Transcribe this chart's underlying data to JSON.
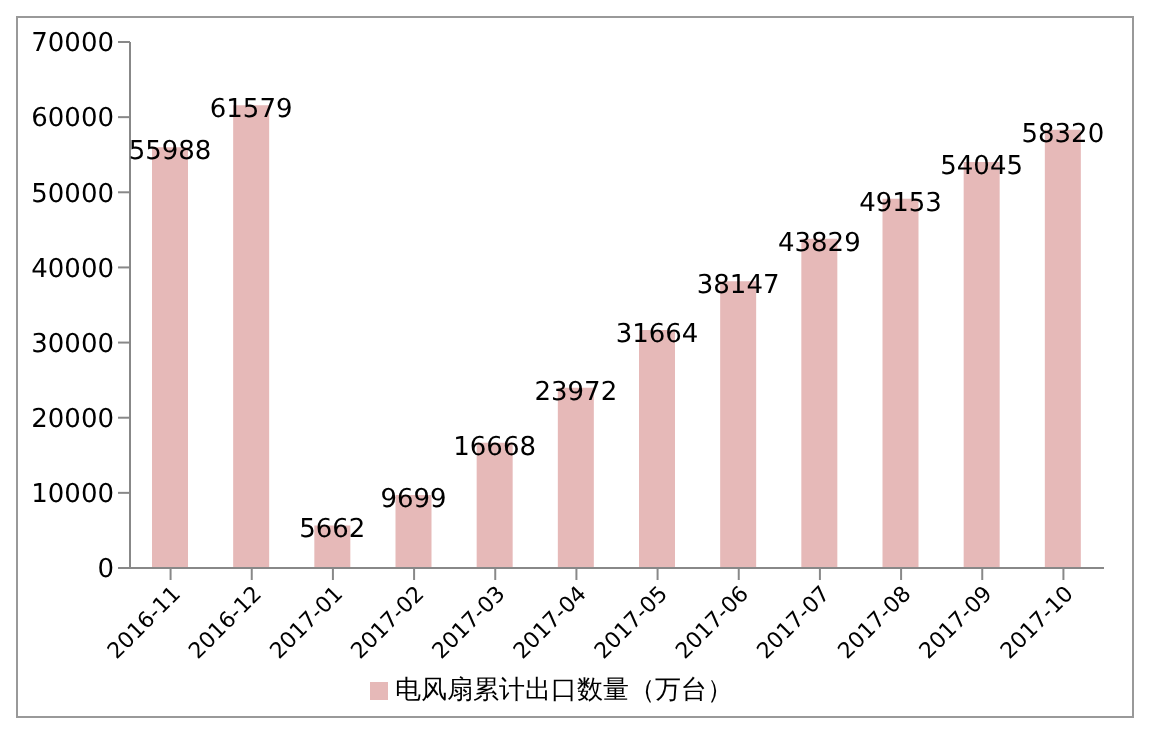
{
  "chart_data": {
    "type": "bar",
    "categories": [
      "2016-11",
      "2016-12",
      "2017-01",
      "2017-02",
      "2017-03",
      "2017-04",
      "2017-05",
      "2017-06",
      "2017-07",
      "2017-08",
      "2017-09",
      "2017-10"
    ],
    "series": [
      {
        "name": "电风扇累计出口数量（万台）",
        "color": "#e6b9b8",
        "values": [
          55988,
          61579,
          5662,
          9699,
          16668,
          23972,
          31664,
          38147,
          43829,
          49153,
          54045,
          58320
        ]
      }
    ],
    "ylim": [
      0,
      70000
    ],
    "yticks": [
      0,
      10000,
      20000,
      30000,
      40000,
      50000,
      60000,
      70000
    ],
    "grid": false,
    "legend": "bottom",
    "data_labels": true
  }
}
